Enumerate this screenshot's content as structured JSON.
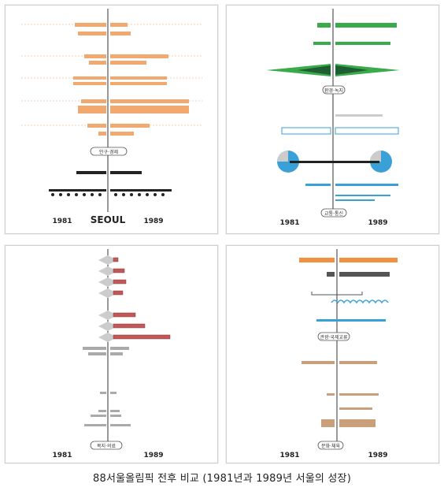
{
  "caption": "88서울올림픽 전후 비교 (1981년과 1989년 서울의 성장)",
  "panels": [
    {
      "id": "population",
      "title": "인구·경제",
      "year_left": "1981",
      "year_right": "1989",
      "city": "SEOUL",
      "accent": "#f2a970",
      "dark": "#222222"
    },
    {
      "id": "environment",
      "title": "환경·녹지",
      "sub_title": "교통·통신",
      "year_left": "1981",
      "year_right": "1989",
      "accent_green": "#3aaa4a",
      "accent_blue": "#3aa0d8",
      "dark": "#222222"
    },
    {
      "id": "welfare",
      "title": "복지·의료",
      "year_left": "1981",
      "year_right": "1989",
      "accent_red": "#c0585a",
      "accent_gray": "#999999"
    },
    {
      "id": "culture",
      "title": "문화·체육",
      "sub_title": "관광·국제교류",
      "year_left": "1981",
      "year_right": "1989",
      "accent_orange": "#f09040",
      "accent_blue": "#3aa0d8",
      "accent_tan": "#c9a07a"
    }
  ]
}
